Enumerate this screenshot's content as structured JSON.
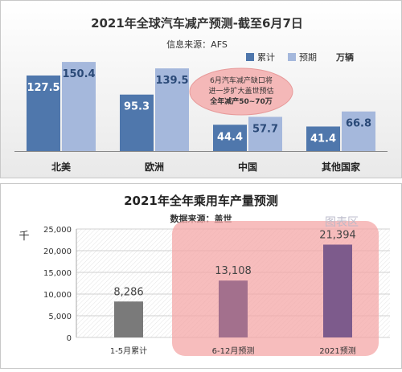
{
  "chart_data": [
    {
      "type": "bar",
      "title": "2021年全球汽车减产预测-截至6月7日",
      "subtitle": "信息来源：AFS",
      "unit": "万辆",
      "categories": [
        "北美",
        "欧洲",
        "中国",
        "其他国家"
      ],
      "series": [
        {
          "name": "累计",
          "color": "#4f77ac",
          "values": [
            127.5,
            95.3,
            44.4,
            41.4
          ]
        },
        {
          "name": "预期",
          "color": "#a5b8dc",
          "values": [
            150.4,
            139.5,
            57.7,
            66.8
          ]
        }
      ],
      "ylim": [
        0,
        160
      ],
      "grid": false,
      "legend": "top-right",
      "annotation": {
        "lines": [
          "6月汽车减产缺口将",
          "进一步扩大盖世预估",
          "全年减产50~70万"
        ],
        "color": "#f4b8b8"
      }
    },
    {
      "type": "bar",
      "title": "2021年全年乘用车产量预测",
      "subtitle": "数据来源：盖世",
      "ylabel": "千",
      "categories": [
        "1-5月累计",
        "6-12月预测",
        "2021预测"
      ],
      "values": [
        8286,
        13108,
        21394
      ],
      "value_labels": [
        "8,286",
        "13,108",
        "21,394"
      ],
      "colors": [
        "#7a7a7a",
        "#a3708d",
        "#7d5b8c"
      ],
      "ylim": [
        0,
        25000
      ],
      "yticks": [
        0,
        5000,
        10000,
        15000,
        20000,
        25000
      ],
      "ytick_labels": [
        "0",
        "5,000",
        "10,000",
        "15,000",
        "20,000",
        "25,000"
      ],
      "grid": true,
      "highlight_color": "#f4a7a7",
      "watermark": "图表区"
    }
  ]
}
